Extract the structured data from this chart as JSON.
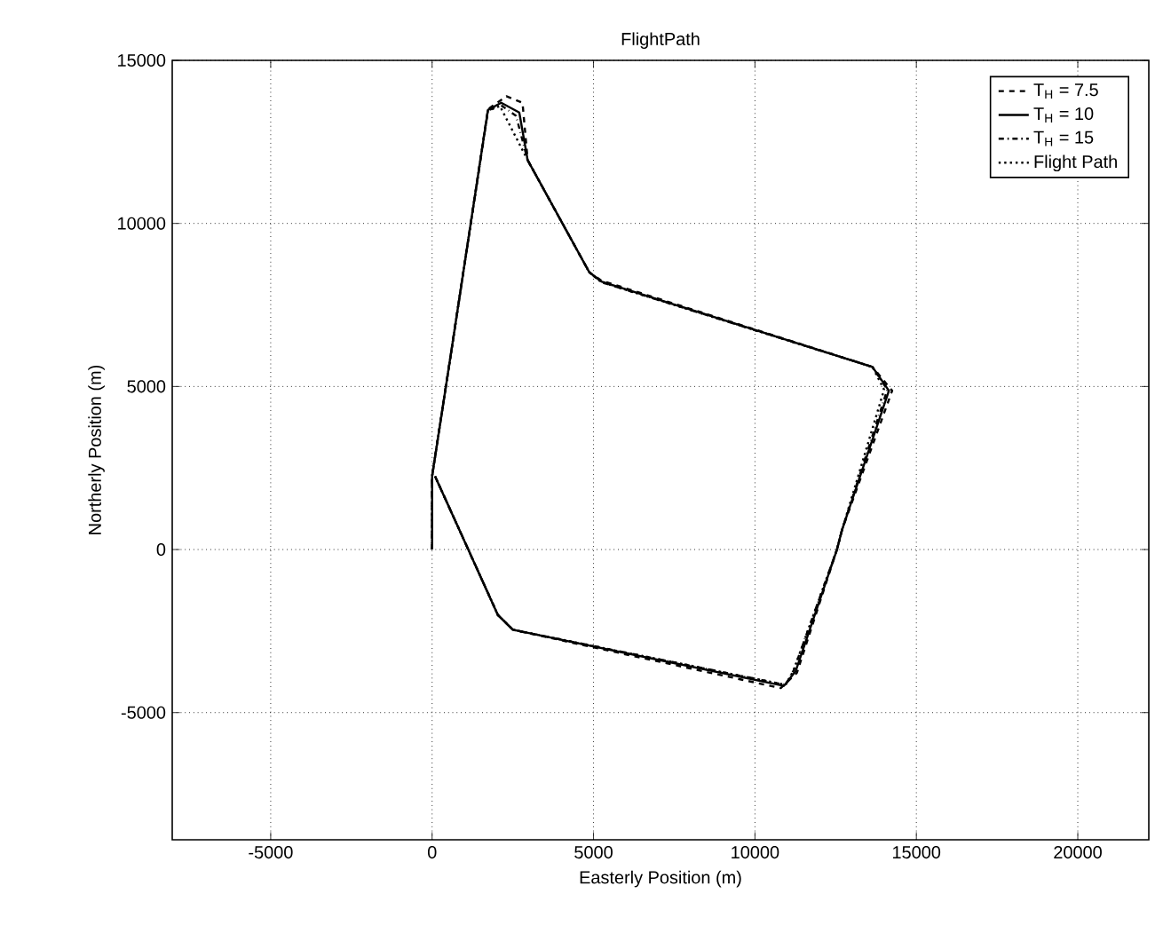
{
  "chart_data": {
    "type": "line",
    "title": "FlightPath",
    "xlabel": "Easterly Position (m)",
    "ylabel": "Northerly Position (m)",
    "xlim": [
      -8050,
      22200
    ],
    "ylim": [
      -8900,
      15000
    ],
    "xticks": [
      -5000,
      0,
      5000,
      10000,
      15000,
      20000
    ],
    "yticks": [
      -5000,
      0,
      5000,
      10000,
      15000
    ],
    "grid": true,
    "legend": "top right",
    "series": [
      {
        "name": "T$_{H}$ = 7.5",
        "color": "#000000",
        "line_style": "dashed",
        "x": [
          0,
          0,
          590,
          1730,
          2300,
          2800,
          2960,
          4870,
          5240,
          13640,
          14250,
          12700,
          12540,
          11300,
          10800,
          2500,
          2040,
          90
        ],
        "values": [
          0,
          2250,
          6050,
          13500,
          13900,
          13700,
          11940,
          8500,
          8250,
          5600,
          4870,
          610,
          0,
          -3780,
          -4250,
          -2460,
          -2010,
          2250
        ]
      },
      {
        "name": "T$_{H}$ = 10",
        "color": "#000000",
        "line_style": "solid",
        "x": [
          0,
          0,
          590,
          1730,
          2140,
          2700,
          2960,
          4870,
          5240,
          13640,
          14150,
          12700,
          12540,
          11260,
          10900,
          2500,
          2040,
          90
        ],
        "values": [
          0,
          2250,
          6050,
          13480,
          13700,
          13400,
          11940,
          8500,
          8220,
          5600,
          4870,
          610,
          0,
          -3730,
          -4180,
          -2460,
          -2010,
          2250
        ]
      },
      {
        "name": "T$_{H}$ = 15",
        "color": "#000000",
        "line_style": "dashdot",
        "x": [
          0,
          0,
          590,
          1730,
          2100,
          2600,
          2960,
          4870,
          5240,
          13640,
          14100,
          12700,
          12540,
          11200,
          10950,
          2500,
          2040,
          90
        ],
        "values": [
          0,
          2250,
          6050,
          13450,
          13650,
          13300,
          11940,
          8500,
          8200,
          5600,
          4900,
          610,
          0,
          -3700,
          -4150,
          -2460,
          -2010,
          2250
        ]
      },
      {
        "name": "Flight Path",
        "color": "#000000",
        "line_style": "dotted",
        "x": [
          0,
          0,
          590,
          1730,
          2100,
          2960,
          4870,
          5240,
          13640,
          14000,
          12700,
          12540,
          11200,
          10950,
          2500,
          2040,
          90
        ],
        "values": [
          0,
          2250,
          6050,
          13450,
          13600,
          11940,
          8500,
          8200,
          5600,
          4900,
          610,
          0,
          -3700,
          -4150,
          -2460,
          -2010,
          2250
        ]
      }
    ]
  }
}
